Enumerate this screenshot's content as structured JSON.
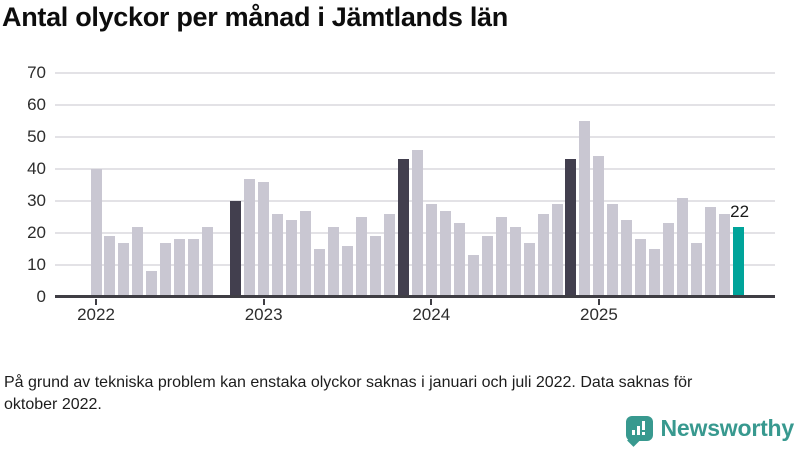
{
  "title": "Antal olyckor per månad i Jämtlands län",
  "footnote": "På grund av tekniska problem kan enstaka olyckor saknas i januari och juli 2022. Data saknas för oktober 2022.",
  "branding": {
    "logo_text": "Newsworthy",
    "logo_icon": "newsworthy-speech-bubble-bars-icon",
    "brand_color": "#38998f"
  },
  "chart_data": {
    "type": "bar",
    "title": "Antal olyckor per månad i Jämtlands län",
    "xlabel": "",
    "ylabel": "",
    "ylim": [
      0,
      70
    ],
    "yticks": [
      0,
      10,
      20,
      30,
      40,
      50,
      60,
      70
    ],
    "xticks": [
      "2022",
      "2023",
      "2024",
      "2025"
    ],
    "grid": true,
    "x": [
      "2022-01",
      "2022-02",
      "2022-03",
      "2022-04",
      "2022-05",
      "2022-06",
      "2022-07",
      "2022-08",
      "2022-09",
      "2022-10",
      "2022-11",
      "2022-12",
      "2023-01",
      "2023-02",
      "2023-03",
      "2023-04",
      "2023-05",
      "2023-06",
      "2023-07",
      "2023-08",
      "2023-09",
      "2023-10",
      "2023-11",
      "2023-12",
      "2024-01",
      "2024-02",
      "2024-03",
      "2024-04",
      "2024-05",
      "2024-06",
      "2024-07",
      "2024-08",
      "2024-09",
      "2024-10",
      "2024-11",
      "2024-12",
      "2025-01",
      "2025-02",
      "2025-03",
      "2025-04",
      "2025-05",
      "2025-06",
      "2025-07",
      "2025-08",
      "2025-09",
      "2025-10",
      "2025-11"
    ],
    "values": [
      40,
      19,
      17,
      22,
      8,
      17,
      18,
      18,
      22,
      null,
      30,
      37,
      36,
      26,
      24,
      27,
      15,
      22,
      16,
      25,
      19,
      26,
      43,
      46,
      29,
      27,
      23,
      13,
      19,
      25,
      22,
      17,
      26,
      29,
      43,
      55,
      44,
      29,
      24,
      18,
      15,
      23,
      31,
      17,
      28,
      26,
      22
    ],
    "missing_months": [
      "2022-10"
    ],
    "highlighted_dark_months": [
      "2022-11",
      "2023-11",
      "2024-11"
    ],
    "current_month": "2025-11",
    "annotation": {
      "text": "22",
      "month": "2025-11"
    },
    "colors": {
      "bar": "#c9c7d2",
      "highlight_dark": "#423f4e",
      "highlight_current": "#00a49a",
      "gridline": "#e3e2e6",
      "axis": "#3f3e44"
    }
  }
}
